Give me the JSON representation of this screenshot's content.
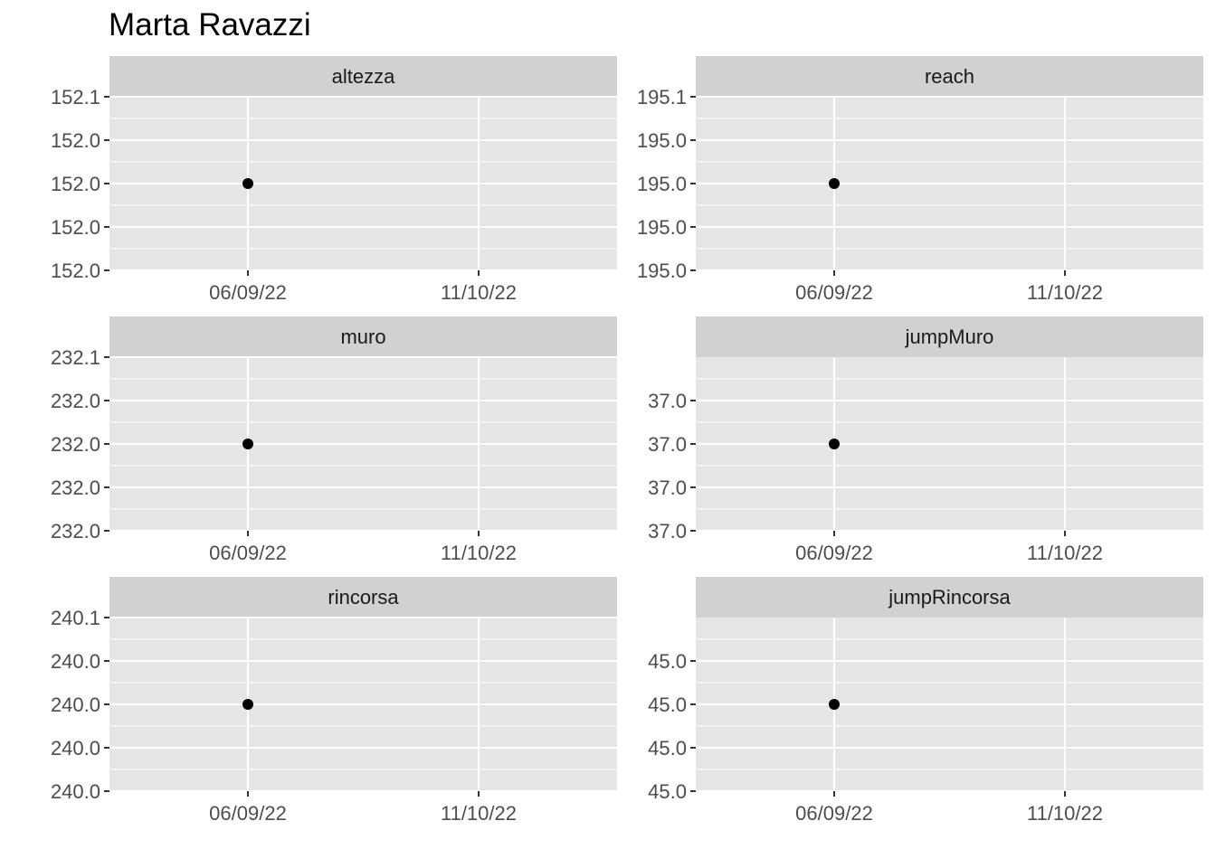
{
  "chart_data": {
    "type": "scatter",
    "title": "Marta Ravazzi",
    "facet_layout": "3x2",
    "grid": true,
    "x_tick_labels": [
      "06/09/22",
      "11/10/22"
    ],
    "panels": [
      {
        "name": "altezza",
        "y_ticks": [
          "152.1",
          "152.0",
          "152.0",
          "152.0",
          "152.0"
        ],
        "points": [
          {
            "x": "06/09/22",
            "y": 152.0
          }
        ]
      },
      {
        "name": "reach",
        "y_ticks": [
          "195.1",
          "195.0",
          "195.0",
          "195.0",
          "195.0"
        ],
        "points": [
          {
            "x": "06/09/22",
            "y": 195.0
          }
        ]
      },
      {
        "name": "muro",
        "y_ticks": [
          "232.1",
          "232.0",
          "232.0",
          "232.0",
          "232.0"
        ],
        "points": [
          {
            "x": "06/09/22",
            "y": 232.0
          }
        ]
      },
      {
        "name": "jumpMuro",
        "y_ticks": [
          "",
          "37.0",
          "37.0",
          "37.0",
          "37.0"
        ],
        "points": [
          {
            "x": "06/09/22",
            "y": 37.0
          }
        ]
      },
      {
        "name": "rincorsa",
        "y_ticks": [
          "240.1",
          "240.0",
          "240.0",
          "240.0",
          "240.0"
        ],
        "points": [
          {
            "x": "06/09/22",
            "y": 240.0
          }
        ]
      },
      {
        "name": "jumpRincorsa",
        "y_ticks": [
          "",
          "45.0",
          "45.0",
          "45.0",
          "45.0"
        ],
        "points": [
          {
            "x": "06/09/22",
            "y": 45.0
          }
        ]
      }
    ],
    "colors": {
      "panel_background": "#e5e5e5",
      "strip_background": "#d1d1d1",
      "grid": "#ffffff",
      "point": "#000000",
      "tick_text": "#4d4d4d",
      "strip_text": "#1a1a1a"
    }
  }
}
